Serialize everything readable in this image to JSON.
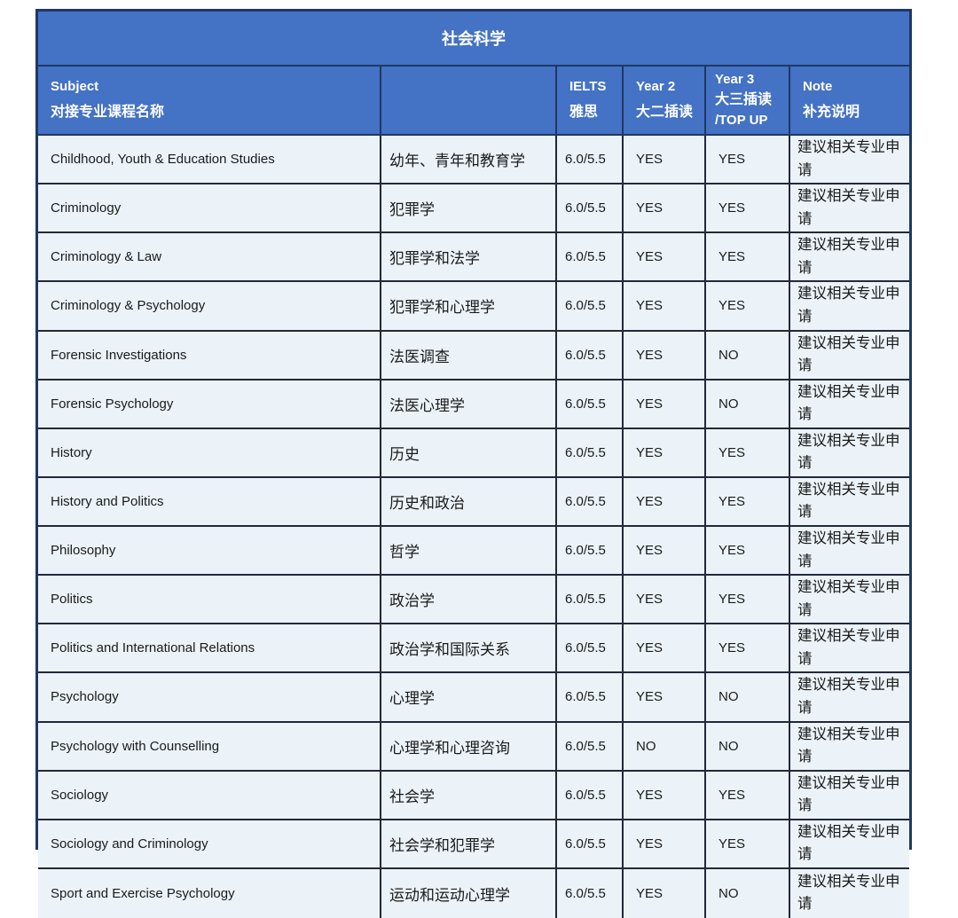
{
  "title": "社会科学",
  "colors": {
    "header_bg": "#4472C4",
    "header_text": "#FFFFFF",
    "row_bg": "#EBF3F8",
    "border_outer": "#1F3864",
    "border_inner": "#23283A",
    "body_text": "#1A1A1A"
  },
  "header": {
    "subject": {
      "line1": "Subject",
      "line2": "对接专业课程名称"
    },
    "chinese_name": "",
    "ielts": {
      "line1": "IELTS",
      "line2": "雅思"
    },
    "year2": {
      "line1": "Year 2",
      "line2": "大二插读"
    },
    "year3": {
      "line1": "Year 3",
      "line2": "大三插读",
      "line3": "/TOP UP"
    },
    "note": {
      "line1": "Note",
      "line2": "补充说明"
    }
  },
  "rows": [
    {
      "subject": "Childhood, Youth & Education Studies",
      "chinese": "幼年、青年和教育学",
      "ielts": "6.0/5.5",
      "year2": "YES",
      "year3": "YES",
      "note": "建议相关专业申请"
    },
    {
      "subject": "Criminology",
      "chinese": "犯罪学",
      "ielts": "6.0/5.5",
      "year2": "YES",
      "year3": "YES",
      "note": "建议相关专业申请"
    },
    {
      "subject": "Criminology & Law",
      "chinese": "犯罪学和法学",
      "ielts": "6.0/5.5",
      "year2": "YES",
      "year3": "YES",
      "note": "建议相关专业申请"
    },
    {
      "subject": "Criminology & Psychology",
      "chinese": "犯罪学和心理学",
      "ielts": "6.0/5.5",
      "year2": "YES",
      "year3": "YES",
      "note": "建议相关专业申请"
    },
    {
      "subject": "Forensic Investigations",
      "chinese": "法医调查",
      "ielts": "6.0/5.5",
      "year2": "YES",
      "year3": "NO",
      "note": "建议相关专业申请"
    },
    {
      "subject": "Forensic Psychology",
      "chinese": "法医心理学",
      "ielts": "6.0/5.5",
      "year2": "YES",
      "year3": "NO",
      "note": "建议相关专业申请"
    },
    {
      "subject": "History",
      "chinese": "历史",
      "ielts": "6.0/5.5",
      "year2": "YES",
      "year3": "YES",
      "note": "建议相关专业申请"
    },
    {
      "subject": "History and Politics",
      "chinese": "历史和政治",
      "ielts": "6.0/5.5",
      "year2": "YES",
      "year3": "YES",
      "note": "建议相关专业申请"
    },
    {
      "subject": "Philosophy",
      "chinese": "哲学",
      "ielts": "6.0/5.5",
      "year2": "YES",
      "year3": "YES",
      "note": "建议相关专业申请"
    },
    {
      "subject": "Politics",
      "chinese": "政治学",
      "ielts": "6.0/5.5",
      "year2": "YES",
      "year3": "YES",
      "note": "建议相关专业申请"
    },
    {
      "subject": "Politics and International Relations",
      "chinese": "政治学和国际关系",
      "ielts": "6.0/5.5",
      "year2": "YES",
      "year3": "YES",
      "note": "建议相关专业申请"
    },
    {
      "subject": "Psychology",
      "chinese": "心理学",
      "ielts": "6.0/5.5",
      "year2": "YES",
      "year3": "NO",
      "note": "建议相关专业申请"
    },
    {
      "subject": "Psychology with Counselling",
      "chinese": "心理学和心理咨询",
      "ielts": "6.0/5.5",
      "year2": "NO",
      "year3": "NO",
      "note": "建议相关专业申请"
    },
    {
      "subject": "Sociology",
      "chinese": "社会学",
      "ielts": "6.0/5.5",
      "year2": "YES",
      "year3": "YES",
      "note": "建议相关专业申请"
    },
    {
      "subject": "Sociology and Criminology",
      "chinese": "社会学和犯罪学",
      "ielts": "6.0/5.5",
      "year2": "YES",
      "year3": "YES",
      "note": "建议相关专业申请"
    },
    {
      "subject": "Sport and Exercise Psychology",
      "chinese": "运动和运动心理学",
      "ielts": "6.0/5.5",
      "year2": "YES",
      "year3": "NO",
      "note": "建议相关专业申请"
    }
  ]
}
